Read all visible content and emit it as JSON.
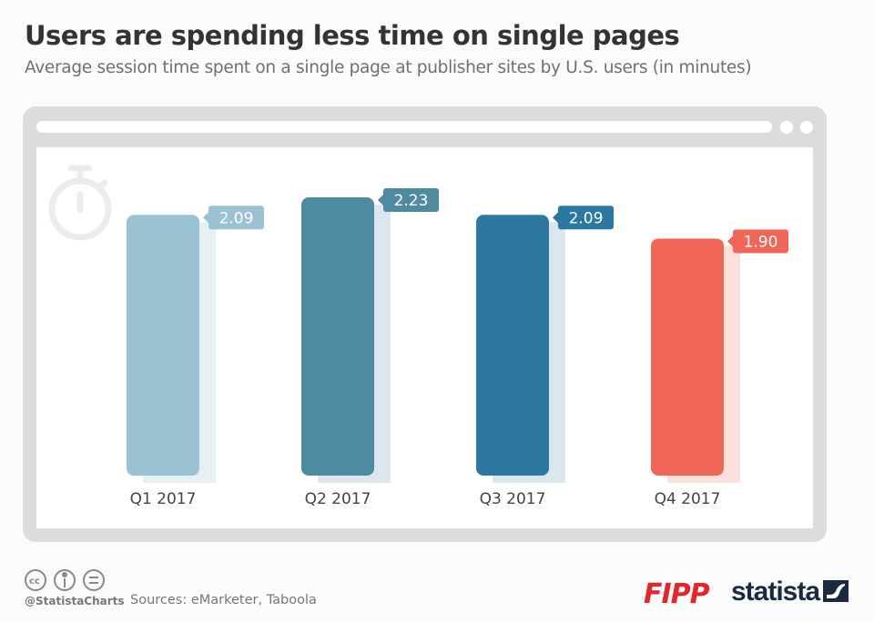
{
  "title": "Users are spending less time on single pages",
  "subtitle": "Average session time spent on a single page at publisher sites by U.S. users (in minutes)",
  "footer": {
    "handle": "@StatistaCharts",
    "sources": "Sources: eMarketer, Taboola",
    "logo_fipp": "FIPP",
    "logo_statista": "statista"
  },
  "chart_data": {
    "type": "bar",
    "title": "Users are spending less time on single pages",
    "ylabel": "minutes",
    "categories": [
      "Q1 2017",
      "Q2 2017",
      "Q3 2017",
      "Q4 2017"
    ],
    "values": [
      2.09,
      2.23,
      2.09,
      1.9
    ],
    "labels": [
      "2.09",
      "2.23",
      "2.09",
      "1.90"
    ],
    "colors": [
      "#9ac2d3",
      "#4e8aa0",
      "#2c78a0",
      "#f0675a"
    ],
    "shadow_colors": [
      "#e6f0f4",
      "#dbe7ec",
      "#dbe7ee",
      "#fde0dc"
    ],
    "ylim": [
      0,
      2.23
    ]
  }
}
